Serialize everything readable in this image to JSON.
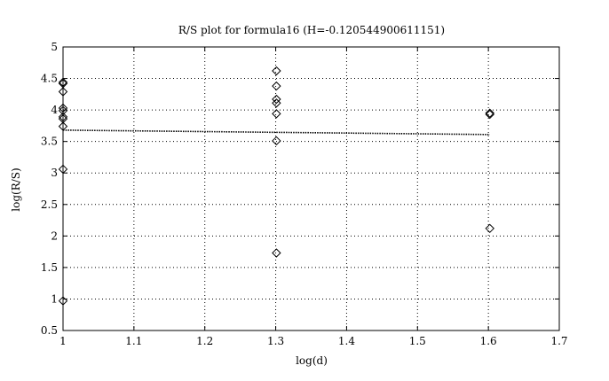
{
  "chart_data": {
    "type": "scatter",
    "title": "R/S plot for formula16 (H=-0.120544900611151)",
    "xlabel": "log(d)",
    "ylabel": "log(R/S)",
    "xlim": [
      1,
      1.7
    ],
    "ylim": [
      0.5,
      5
    ],
    "xticks": [
      1,
      1.1,
      1.2,
      1.3,
      1.4,
      1.5,
      1.6,
      1.7
    ],
    "xtick_labels": [
      "1",
      "1.1",
      "1.2",
      "1.3",
      "1.4",
      "1.5",
      "1.6",
      "1.7"
    ],
    "yticks": [
      0.5,
      1,
      1.5,
      2,
      2.5,
      3,
      3.5,
      4,
      4.5,
      5
    ],
    "ytick_labels": [
      "0.5",
      "1",
      "1.5",
      "2",
      "2.5",
      "3",
      "3.5",
      "4",
      "4.5",
      "5"
    ],
    "grid": true,
    "marker": "diamond",
    "series": [
      {
        "type": "scatter",
        "x": [
          1,
          1,
          1,
          1,
          1,
          1,
          1,
          1,
          1,
          1,
          1.301,
          1.301,
          1.301,
          1.301,
          1.301,
          1.301,
          1.301,
          1.602,
          1.602,
          1.602
        ],
        "y": [
          4.44,
          4.42,
          4.29,
          4.03,
          3.99,
          3.89,
          3.86,
          3.74,
          3.06,
          0.97,
          4.62,
          4.38,
          4.17,
          4.11,
          3.51,
          1.73,
          3.94,
          3.95,
          3.93,
          2.12
        ]
      },
      {
        "type": "line",
        "style": "dotted",
        "x": [
          1,
          1.602
        ],
        "y": [
          3.68,
          3.61
        ]
      }
    ]
  }
}
